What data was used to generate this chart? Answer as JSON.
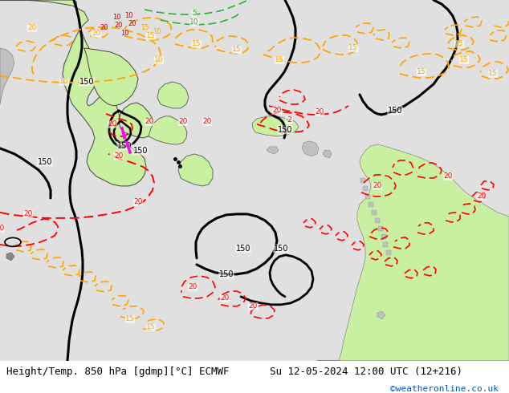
{
  "title_left": "Height/Temp. 850 hPa [gdmp][°C] ECMWF",
  "title_right": "Su 12-05-2024 12:00 UTC (12+216)",
  "credit": "©weatheronline.co.uk",
  "bg_color": "#e0e0e0",
  "land_green": "#c8f0a0",
  "land_gray": "#c0c0c0",
  "land_green2": "#a8e880",
  "figsize": [
    6.34,
    4.9
  ],
  "dpi": 100,
  "caption_fontsize": 9,
  "caption_color": "#000000",
  "credit_color": "#0055cc"
}
